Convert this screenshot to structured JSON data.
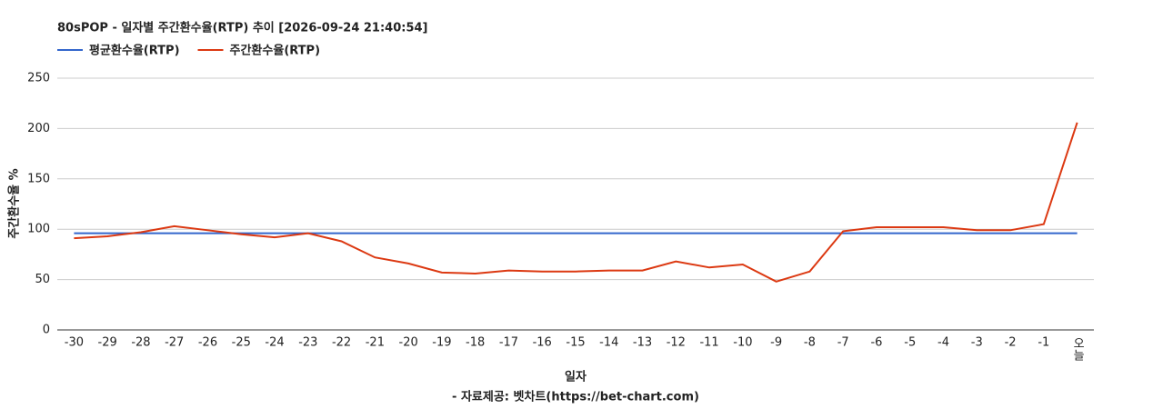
{
  "chart_data": {
    "type": "line",
    "title": "80sPOP - 일자별 주간환수율(RTP) 추이 [2026-09-24 21:40:54]",
    "y_label": "주간환수율 %",
    "x_label": "일자",
    "source": "- 자료제공: 벳차트(https://bet-chart.com)",
    "categories": [
      "-30",
      "-29",
      "-28",
      "-27",
      "-26",
      "-25",
      "-24",
      "-23",
      "-22",
      "-21",
      "-20",
      "-19",
      "-18",
      "-17",
      "-16",
      "-15",
      "-14",
      "-13",
      "-12",
      "-11",
      "-10",
      "-9",
      "-8",
      "-7",
      "-6",
      "-5",
      "-4",
      "-3",
      "-2",
      "-1",
      "오늘"
    ],
    "series": [
      {
        "name": "평균환수율(RTP)",
        "color": "#3366cc",
        "values": [
          96,
          96,
          96,
          96,
          96,
          96,
          96,
          96,
          96,
          96,
          96,
          96,
          96,
          96,
          96,
          96,
          96,
          96,
          96,
          96,
          96,
          96,
          96,
          96,
          96,
          96,
          96,
          96,
          96,
          96,
          96
        ]
      },
      {
        "name": "주간환수율(RTP)",
        "color": "#dc3912",
        "values": [
          91,
          93,
          97,
          103,
          99,
          95,
          92,
          96,
          88,
          72,
          66,
          57,
          56,
          59,
          58,
          58,
          59,
          59,
          68,
          62,
          65,
          48,
          58,
          98,
          102,
          102,
          102,
          99,
          99,
          105,
          206
        ]
      }
    ],
    "ylim": [
      0,
      250
    ],
    "yticks": [
      0,
      50,
      100,
      150,
      200,
      250
    ],
    "grid": true,
    "legend": "top-left"
  }
}
